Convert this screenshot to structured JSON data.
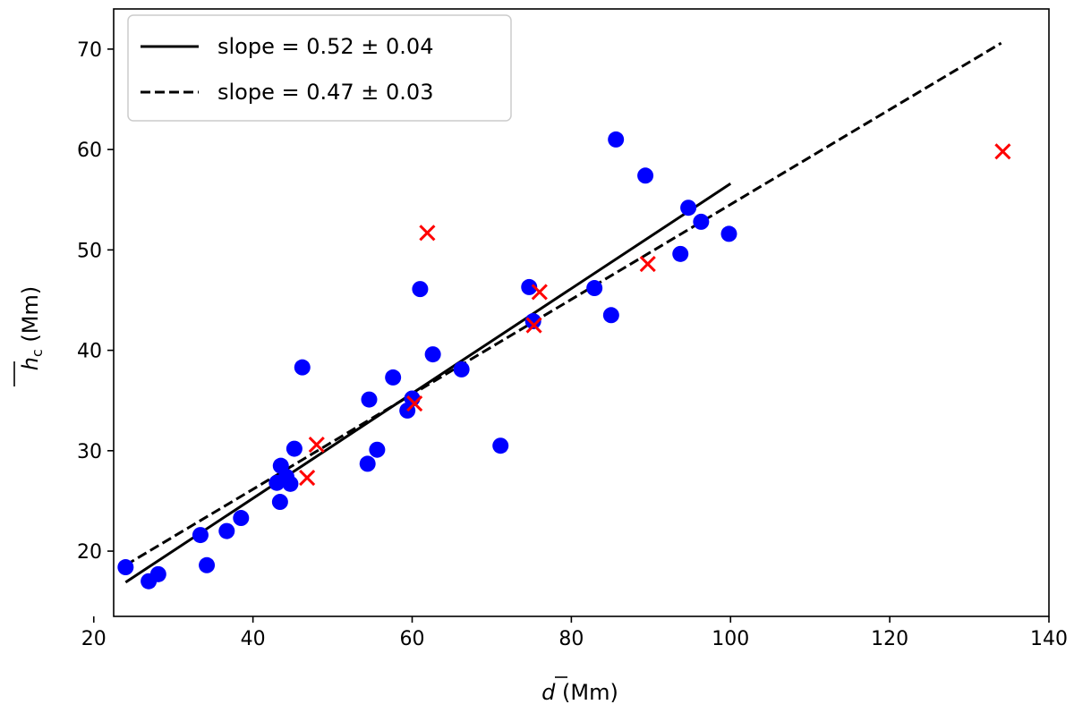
{
  "chart_data": {
    "type": "scatter",
    "title": "",
    "xlabel": {
      "symbol": "d",
      "unit": " (Mm)"
    },
    "ylabel": {
      "symbol": "h",
      "subscript": "c",
      "unit": " (Mm)"
    },
    "xlim": [
      22.5,
      140
    ],
    "ylim": [
      13.5,
      74
    ],
    "xticks": [
      20,
      40,
      60,
      80,
      100,
      120,
      140
    ],
    "yticks": [
      20,
      30,
      40,
      50,
      60,
      70
    ],
    "grid": false,
    "legend_position": "top-left",
    "series": [
      {
        "name": "blue circles",
        "marker": "circle",
        "color": "#0000ff",
        "points": [
          [
            24.0,
            18.4
          ],
          [
            26.9,
            17.0
          ],
          [
            28.1,
            17.7
          ],
          [
            33.4,
            21.6
          ],
          [
            34.2,
            18.6
          ],
          [
            36.7,
            22.0
          ],
          [
            38.5,
            23.3
          ],
          [
            43.0,
            26.8
          ],
          [
            43.5,
            28.5
          ],
          [
            43.4,
            24.9
          ],
          [
            44.2,
            27.4
          ],
          [
            44.7,
            26.7
          ],
          [
            45.2,
            30.2
          ],
          [
            46.2,
            38.3
          ],
          [
            54.4,
            28.7
          ],
          [
            54.6,
            35.1
          ],
          [
            55.6,
            30.1
          ],
          [
            57.6,
            37.3
          ],
          [
            59.4,
            34.0
          ],
          [
            60.0,
            35.2
          ],
          [
            61.0,
            46.1
          ],
          [
            62.6,
            39.6
          ],
          [
            66.2,
            38.1
          ],
          [
            71.1,
            30.5
          ],
          [
            74.7,
            46.3
          ],
          [
            75.2,
            42.9
          ],
          [
            82.9,
            46.2
          ],
          [
            85.0,
            43.5
          ],
          [
            85.6,
            61.0
          ],
          [
            89.3,
            57.4
          ],
          [
            93.7,
            49.6
          ],
          [
            94.7,
            54.2
          ],
          [
            96.3,
            52.8
          ],
          [
            99.8,
            51.6
          ]
        ]
      },
      {
        "name": "red crosses",
        "marker": "x",
        "color": "#ff0000",
        "points": [
          [
            46.8,
            27.3
          ],
          [
            48.0,
            30.6
          ],
          [
            60.3,
            34.7
          ],
          [
            61.9,
            51.7
          ],
          [
            75.3,
            42.5
          ],
          [
            76.0,
            45.8
          ],
          [
            89.6,
            48.6
          ],
          [
            134.2,
            59.8
          ]
        ]
      }
    ],
    "fit_lines": [
      {
        "label": "slope = 0.52 ± 0.04",
        "style": "solid",
        "x": [
          24,
          100
        ],
        "y": [
          16.9,
          56.6
        ]
      },
      {
        "label": "slope = 0.47 ± 0.03",
        "style": "dashed",
        "x": [
          24,
          134
        ],
        "y": [
          18.6,
          70.6
        ]
      }
    ]
  }
}
